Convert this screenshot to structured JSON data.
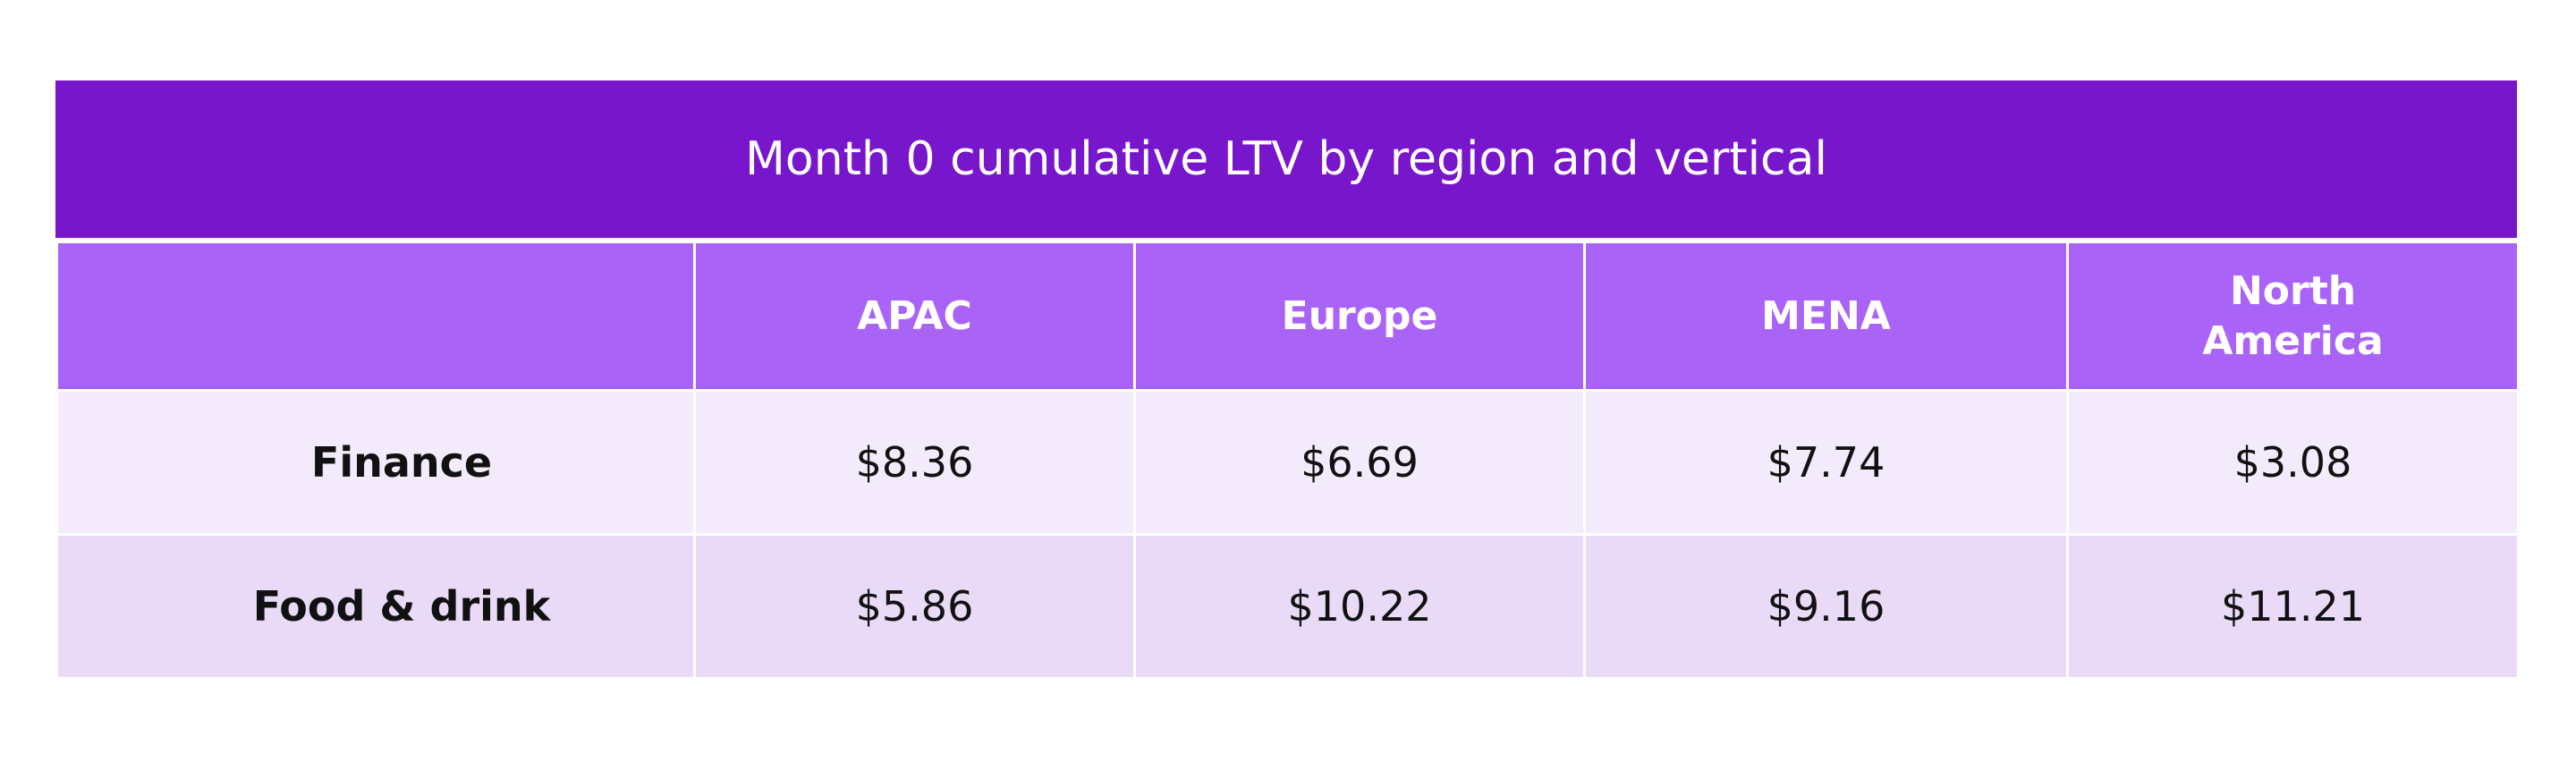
{
  "chart_data": {
    "type": "table",
    "title": "Month 0 cumulative LTV by region and vertical",
    "columns": [
      "",
      "APAC",
      "Europe",
      "MENA",
      "North America"
    ],
    "columns_display": [
      [
        ""
      ],
      [
        "APAC"
      ],
      [
        "Europe"
      ],
      [
        "MENA"
      ],
      [
        "North",
        "America"
      ]
    ],
    "rows": [
      {
        "label": "Finance",
        "values": [
          "$8.36",
          "$6.69",
          "$7.74",
          "$3.08"
        ]
      },
      {
        "label": "Food & drink",
        "values": [
          "$5.86",
          "$10.22",
          "$9.16",
          "$11.21"
        ]
      }
    ]
  },
  "colors": {
    "title_bg": "#7816cc",
    "header_bg": "#a964f7",
    "row_odd_bg": "#f3ebfb",
    "row_even_bg": "#e9dbf7",
    "text_light": "#ffffff",
    "text_dark": "#111111"
  }
}
